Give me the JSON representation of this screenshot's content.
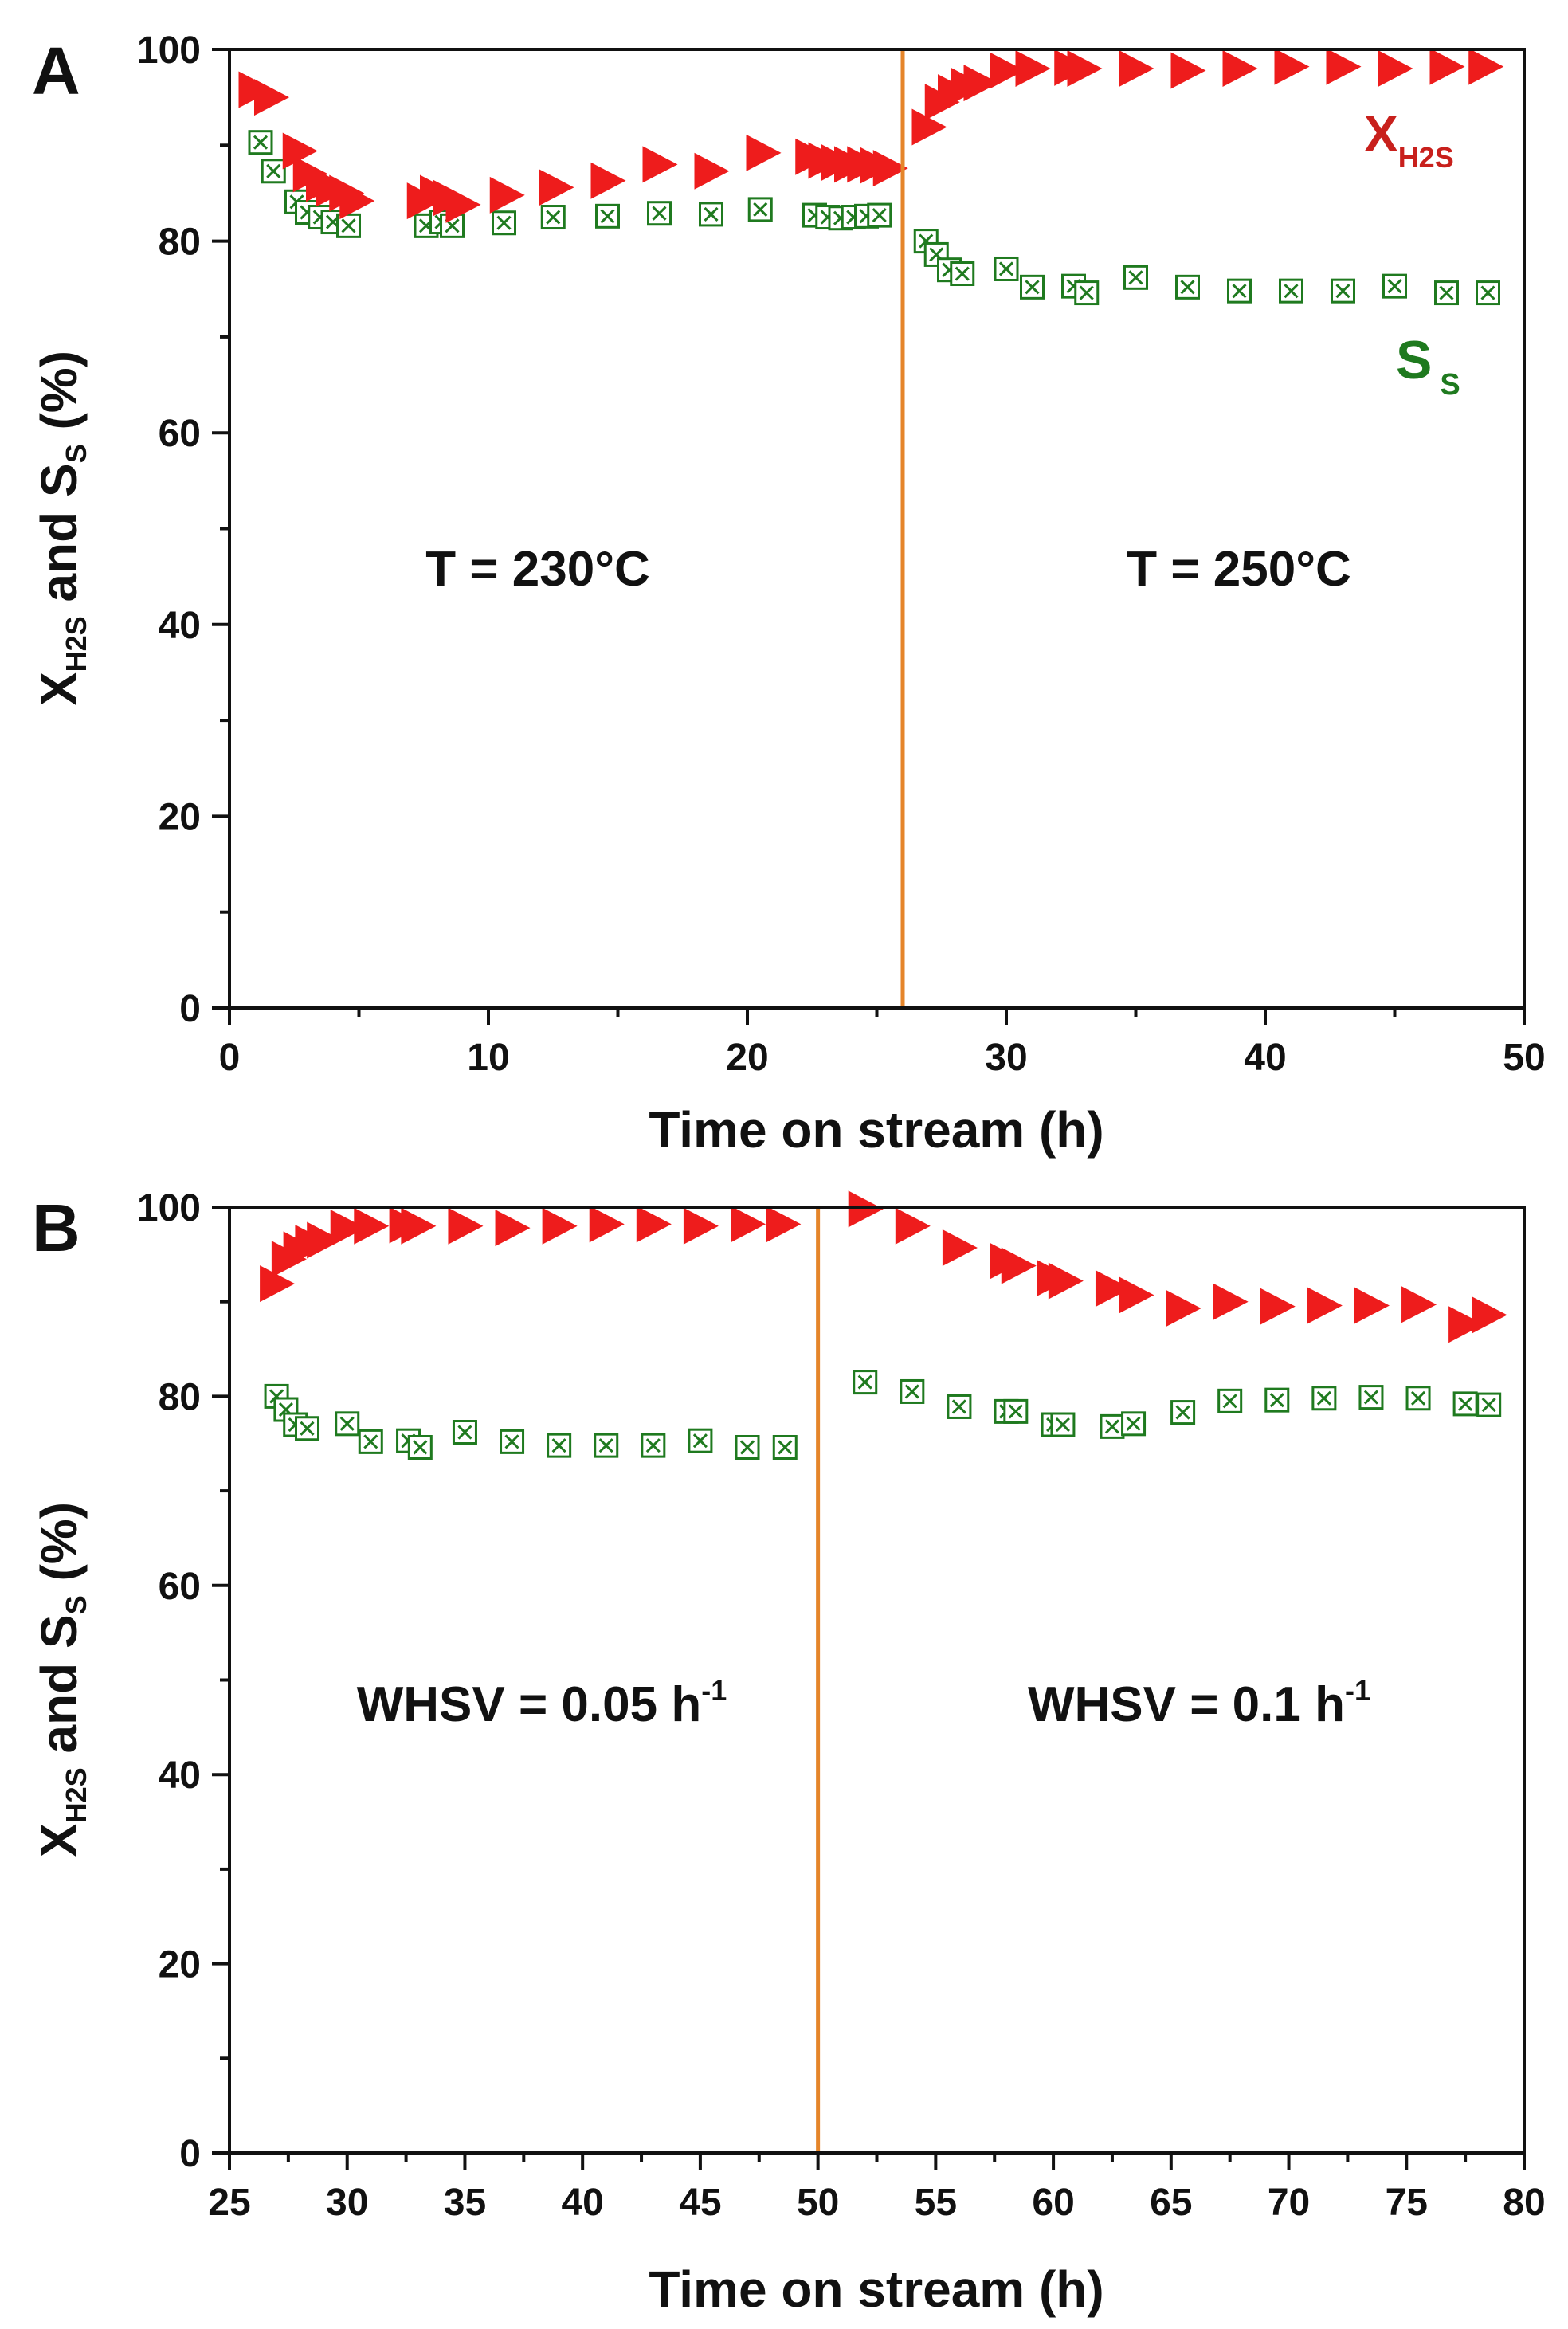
{
  "colors": {
    "conversion": "#ee1c1c",
    "selectivity": "#1f7a1f",
    "divider": "#e5852a",
    "axis": "#111111"
  },
  "chart_data": [
    {
      "panel": "A",
      "type": "scatter",
      "title": "",
      "xlabel": "Time on stream (h)",
      "ylabel": {
        "main": "X",
        "sub1": "H2S",
        "mid": " and S",
        "sub2": "S",
        "tail": " (%)"
      },
      "xlim": [
        0,
        50
      ],
      "ylim": [
        0,
        100
      ],
      "xticks": [
        "0",
        "10",
        "20",
        "30",
        "40",
        "50"
      ],
      "yticks": [
        "0",
        "20",
        "40",
        "60",
        "80",
        "100"
      ],
      "divider_x": 26,
      "regions": [
        {
          "label": "T = 230°C",
          "sup": ""
        },
        {
          "label": "T = 250°C",
          "sup": ""
        }
      ],
      "series_labels": [
        {
          "main": "X",
          "sub": "H2S"
        },
        {
          "main": "S",
          "sub": "S"
        }
      ],
      "series": [
        {
          "name": "X_H2S",
          "marker": "right-triangle",
          "x": [
            1.0,
            1.6,
            2.7,
            3.1,
            3.6,
            4.0,
            4.5,
            4.9,
            7.5,
            8.0,
            8.5,
            9.0,
            10.7,
            12.6,
            14.6,
            16.6,
            18.6,
            20.6,
            22.5,
            23.0,
            23.5,
            24.0,
            24.5,
            25.0,
            25.5,
            27.0,
            27.5,
            28.0,
            28.5,
            29.0,
            30.0,
            31.0,
            32.5,
            33.0,
            35.0,
            37.0,
            39.0,
            41.0,
            43.0,
            45.0,
            47.0,
            48.5
          ],
          "values": [
            95.8,
            95.0,
            89.4,
            87.0,
            86.0,
            85.5,
            85.0,
            84.2,
            84.2,
            85.0,
            84.5,
            83.8,
            84.8,
            85.6,
            86.3,
            88.0,
            87.3,
            89.2,
            88.8,
            88.4,
            88.2,
            88.0,
            88.0,
            87.9,
            87.6,
            91.9,
            94.5,
            95.5,
            96.2,
            96.5,
            97.8,
            98.0,
            98.1,
            98.0,
            98.0,
            97.8,
            98.0,
            98.2,
            98.2,
            98.0,
            98.2,
            98.2
          ]
        },
        {
          "name": "S_S",
          "marker": "crossed-square",
          "x": [
            1.2,
            1.7,
            2.6,
            3.0,
            3.5,
            4.0,
            4.6,
            7.6,
            8.2,
            8.6,
            10.6,
            12.5,
            14.6,
            16.6,
            18.6,
            20.5,
            22.6,
            23.1,
            23.6,
            24.1,
            24.6,
            25.1,
            26.9,
            27.3,
            27.8,
            28.3,
            30.0,
            31.0,
            32.6,
            33.1,
            35.0,
            37.0,
            39.0,
            41.0,
            43.0,
            45.0,
            47.0,
            48.6
          ],
          "values": [
            90.3,
            87.3,
            84.1,
            83.0,
            82.5,
            82.0,
            81.6,
            81.6,
            82.0,
            81.6,
            81.9,
            82.5,
            82.6,
            82.9,
            82.8,
            83.3,
            82.7,
            82.5,
            82.4,
            82.5,
            82.6,
            82.7,
            80.0,
            78.6,
            77.0,
            76.6,
            77.1,
            75.2,
            75.3,
            74.6,
            76.2,
            75.2,
            74.8,
            74.8,
            74.8,
            75.3,
            74.6,
            74.6
          ]
        }
      ]
    },
    {
      "panel": "B",
      "type": "scatter",
      "title": "",
      "xlabel": "Time on stream (h)",
      "ylabel": {
        "main": "X",
        "sub1": "H2S",
        "mid": " and S",
        "sub2": "S",
        "tail": " (%)"
      },
      "xlim": [
        25,
        80
      ],
      "ylim": [
        0,
        100
      ],
      "xticks": [
        "25",
        "30",
        "35",
        "40",
        "45",
        "50",
        "55",
        "60",
        "65",
        "70",
        "75",
        "80"
      ],
      "yticks": [
        "0",
        "20",
        "40",
        "60",
        "80",
        "100"
      ],
      "divider_x": 50,
      "regions": [
        {
          "label": "WHSV = 0.05 h",
          "sup": "-1"
        },
        {
          "label": "WHSV = 0.1 h",
          "sup": "-1"
        }
      ],
      "series_labels": [],
      "series": [
        {
          "name": "X_H2S",
          "marker": "right-triangle",
          "x": [
            27.0,
            27.5,
            28.0,
            28.5,
            29.0,
            30.0,
            31.0,
            32.5,
            33.0,
            35.0,
            37.0,
            39.0,
            41.0,
            43.0,
            45.0,
            47.0,
            48.5,
            52.0,
            54.0,
            56.0,
            58.0,
            58.5,
            60.0,
            60.5,
            62.5,
            63.5,
            65.5,
            67.5,
            69.5,
            71.5,
            73.5,
            75.5,
            77.5,
            78.5
          ],
          "values": [
            91.9,
            94.5,
            95.5,
            96.2,
            96.5,
            97.8,
            98.0,
            98.1,
            98.0,
            98.0,
            97.8,
            98.0,
            98.2,
            98.2,
            98.0,
            98.2,
            98.2,
            99.8,
            98.0,
            95.7,
            94.3,
            93.8,
            92.5,
            92.2,
            91.4,
            90.7,
            89.3,
            90.0,
            89.5,
            89.6,
            89.6,
            89.7,
            87.6,
            88.6
          ]
        },
        {
          "name": "S_S",
          "marker": "crossed-square",
          "x": [
            27.0,
            27.4,
            27.8,
            28.3,
            30.0,
            31.0,
            32.6,
            33.1,
            35.0,
            37.0,
            39.0,
            41.0,
            43.0,
            45.0,
            47.0,
            48.6,
            52.0,
            54.0,
            56.0,
            58.0,
            58.4,
            60.0,
            60.4,
            62.5,
            63.4,
            65.5,
            67.5,
            69.5,
            71.5,
            73.5,
            75.5,
            77.5,
            78.5
          ],
          "values": [
            80.0,
            78.6,
            77.0,
            76.6,
            77.1,
            75.2,
            75.3,
            74.6,
            76.2,
            75.2,
            74.8,
            74.8,
            74.8,
            75.3,
            74.6,
            74.6,
            81.5,
            80.5,
            78.9,
            78.4,
            78.4,
            77.0,
            77.0,
            76.8,
            77.1,
            78.3,
            79.5,
            79.6,
            79.8,
            79.9,
            79.8,
            79.2,
            79.1
          ]
        }
      ]
    }
  ]
}
